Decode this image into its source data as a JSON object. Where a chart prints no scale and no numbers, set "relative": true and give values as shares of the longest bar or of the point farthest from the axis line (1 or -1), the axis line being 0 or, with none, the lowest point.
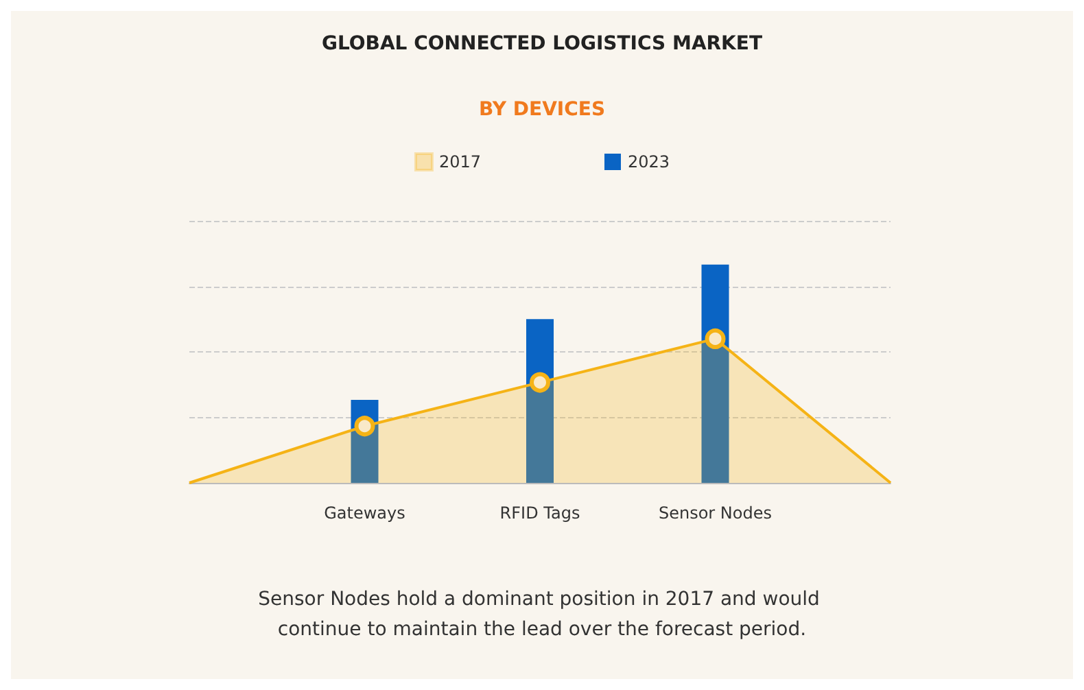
{
  "chart_data": {
    "type": "bar",
    "title": "GLOBAL CONNECTED LOGISTICS MARKET",
    "subtitle": "BY DEVICES",
    "relative": true,
    "categories": [
      null,
      "Gateways",
      "RFID Tags",
      "Sensor Nodes",
      null
    ],
    "series": [
      {
        "name": "2017",
        "type": "area",
        "color": "#f5b316",
        "values": [
          0,
          0.26,
          0.46,
          0.66,
          0
        ]
      },
      {
        "name": "2023",
        "color": "#0a64c4",
        "values": [
          null,
          0.38,
          0.75,
          1,
          null
        ]
      }
    ],
    "marker": "circle",
    "grid": "y",
    "legend": "top",
    "annotations": [
      "Sensor Nodes hold a dominant position in 2017 and would continue to maintain the lead over the forecast period."
    ]
  }
}
